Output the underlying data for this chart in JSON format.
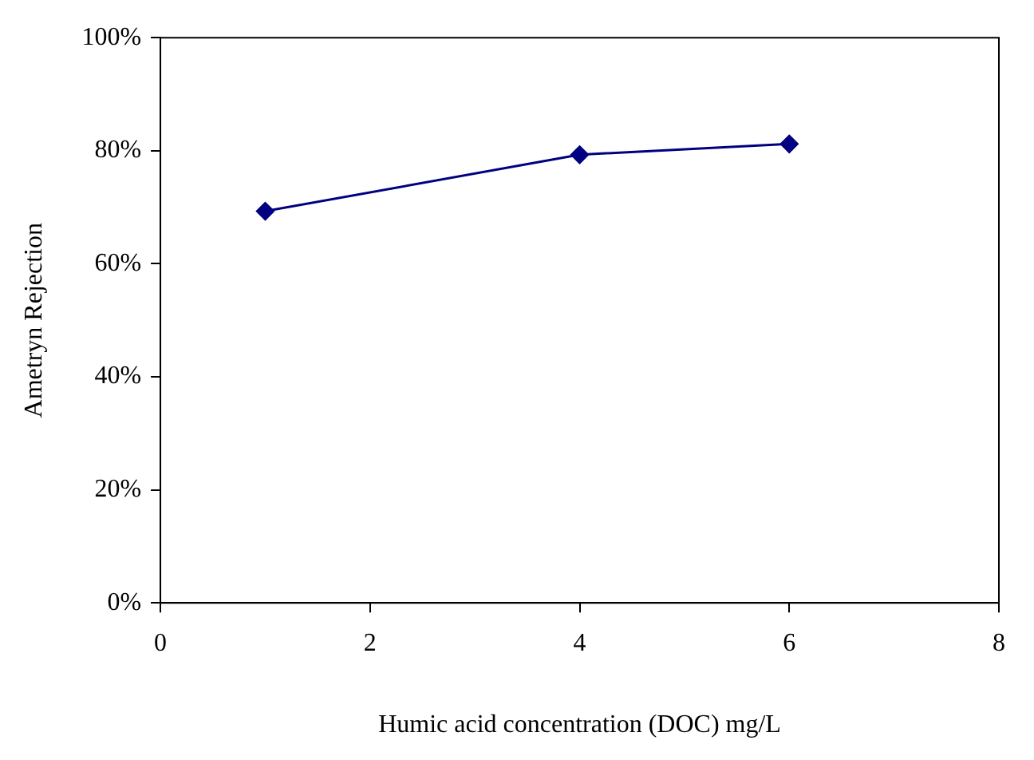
{
  "chart_data": {
    "type": "line",
    "xlabel": "Humic acid concentration (DOC) mg/L",
    "ylabel": "Ametryn Rejection",
    "x": [
      1,
      4,
      6
    ],
    "series": [
      {
        "color": "#000080",
        "values": [
          69.3,
          79.3,
          81.2
        ]
      }
    ],
    "xlim": [
      0,
      8
    ],
    "xticks": [
      0,
      2,
      4,
      6,
      8
    ],
    "ylim": [
      0,
      100
    ],
    "yticks": [
      {
        "value": 0,
        "label": "0%"
      },
      {
        "value": 20,
        "label": "20%"
      },
      {
        "value": 40,
        "label": "40%"
      },
      {
        "value": 60,
        "label": "60%"
      },
      {
        "value": 80,
        "label": "80%"
      },
      {
        "value": 100,
        "label": "100%"
      }
    ],
    "grid": false,
    "legend": false,
    "marker": "diamond",
    "line_style": "solid"
  }
}
